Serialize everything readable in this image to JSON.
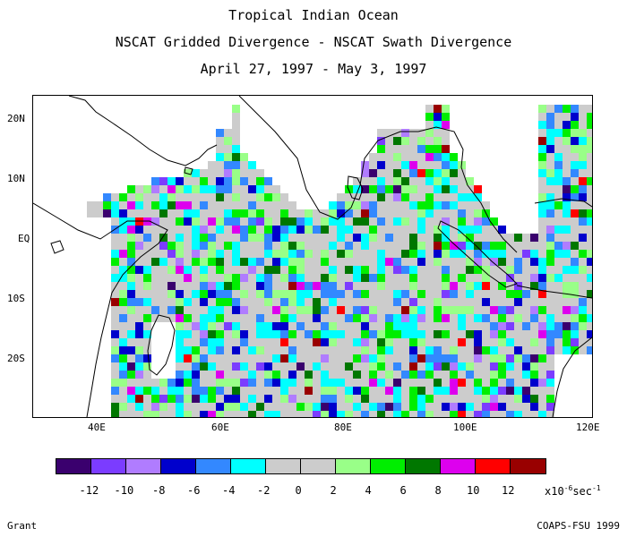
{
  "title_lines": [
    "Tropical Indian Ocean",
    "NSCAT Gridded Divergence - NSCAT Swath Divergence",
    "April 27, 1997 - May 3, 1997"
  ],
  "axes": {
    "y_labels": [
      "20N",
      "10N",
      "EQ",
      "10S",
      "20S"
    ],
    "x_labels": [
      "40E",
      "60E",
      "80E",
      "100E",
      "120E"
    ]
  },
  "colorbar": {
    "colors": [
      "#3a006e",
      "#7b3cff",
      "#b07cff",
      "#0000cc",
      "#3388ff",
      "#00ffff",
      "#cccccc",
      "#cccccc",
      "#99ff88",
      "#00ee00",
      "#007700",
      "#dd00ee",
      "#ff0000",
      "#990000"
    ],
    "tick_labels": [
      "-12",
      "-10",
      "-8",
      "-6",
      "-4",
      "-2",
      "0",
      "2",
      "4",
      "6",
      "8",
      "10",
      "12"
    ],
    "unit_label": "x10",
    "unit_exp": "-6",
    "unit_suffix": "sec",
    "unit_suffix_exp": "-1"
  },
  "footer": {
    "left": "Grant",
    "right": "COAPS-FSU 1999"
  }
}
